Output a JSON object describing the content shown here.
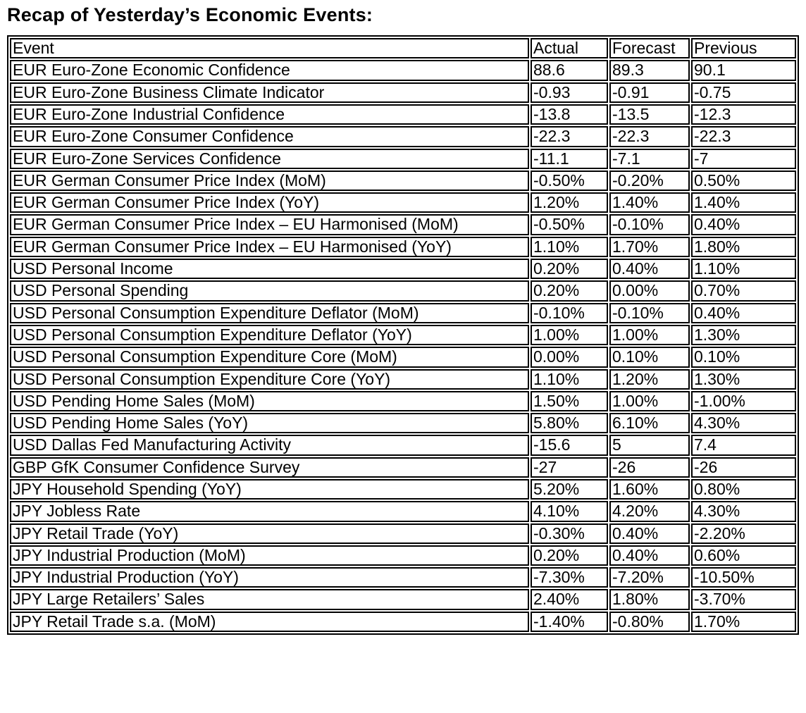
{
  "page": {
    "title": "Recap of Yesterday’s Economic Events:"
  },
  "table": {
    "columns": [
      "Event",
      "Actual",
      "Forecast",
      "Previous"
    ],
    "rows": [
      [
        "EUR Euro-Zone Economic Confidence",
        "88.6",
        "89.3",
        "90.1"
      ],
      [
        "EUR Euro-Zone Business Climate Indicator",
        "-0.93",
        "-0.91",
        "-0.75"
      ],
      [
        "EUR Euro-Zone Industrial Confidence",
        "-13.8",
        "-13.5",
        "-12.3"
      ],
      [
        "EUR Euro-Zone Consumer Confidence",
        "-22.3",
        "-22.3",
        "-22.3"
      ],
      [
        "EUR Euro-Zone Services Confidence",
        "-11.1",
        "-7.1",
        "-7"
      ],
      [
        "EUR German Consumer Price Index (MoM)",
        "-0.50%",
        "-0.20%",
        "0.50%"
      ],
      [
        "EUR German Consumer Price Index (YoY)",
        "1.20%",
        "1.40%",
        "1.40%"
      ],
      [
        "EUR German Consumer Price Index – EU Harmonised (MoM)",
        "-0.50%",
        "-0.10%",
        "0.40%"
      ],
      [
        "EUR German Consumer Price Index – EU Harmonised (YoY)",
        "1.10%",
        "1.70%",
        "1.80%"
      ],
      [
        "USD Personal Income",
        "0.20%",
        "0.40%",
        "1.10%"
      ],
      [
        "USD Personal Spending",
        "0.20%",
        "0.00%",
        "0.70%"
      ],
      [
        "USD Personal Consumption Expenditure Deflator (MoM)",
        "-0.10%",
        "-0.10%",
        "0.40%"
      ],
      [
        "USD Personal Consumption Expenditure Deflator (YoY)",
        "1.00%",
        "1.00%",
        "1.30%"
      ],
      [
        "USD Personal Consumption Expenditure Core (MoM)",
        "0.00%",
        "0.10%",
        "0.10%"
      ],
      [
        "USD Personal Consumption Expenditure Core (YoY)",
        "1.10%",
        "1.20%",
        "1.30%"
      ],
      [
        "USD Pending Home Sales (MoM)",
        "1.50%",
        "1.00%",
        "-1.00%"
      ],
      [
        "USD Pending Home Sales (YoY)",
        "5.80%",
        "6.10%",
        "4.30%"
      ],
      [
        "USD Dallas Fed Manufacturing Activity",
        "-15.6",
        "5",
        "7.4"
      ],
      [
        "GBP GfK Consumer Confidence Survey",
        "-27",
        "-26",
        "-26"
      ],
      [
        "JPY Household Spending (YoY)",
        "5.20%",
        "1.60%",
        "0.80%"
      ],
      [
        "JPY Jobless Rate",
        "4.10%",
        "4.20%",
        "4.30%"
      ],
      [
        "JPY Retail Trade (YoY)",
        "-0.30%",
        "0.40%",
        "-2.20%"
      ],
      [
        "JPY Industrial Production (MoM)",
        "0.20%",
        "0.40%",
        "0.60%"
      ],
      [
        "JPY Industrial Production (YoY)",
        "-7.30%",
        "-7.20%",
        "-10.50%"
      ],
      [
        "JPY Large Retailers’ Sales",
        "2.40%",
        "1.80%",
        "-3.70%"
      ],
      [
        "JPY Retail Trade s.a. (MoM)",
        "-1.40%",
        "-0.80%",
        "1.70%"
      ]
    ]
  }
}
